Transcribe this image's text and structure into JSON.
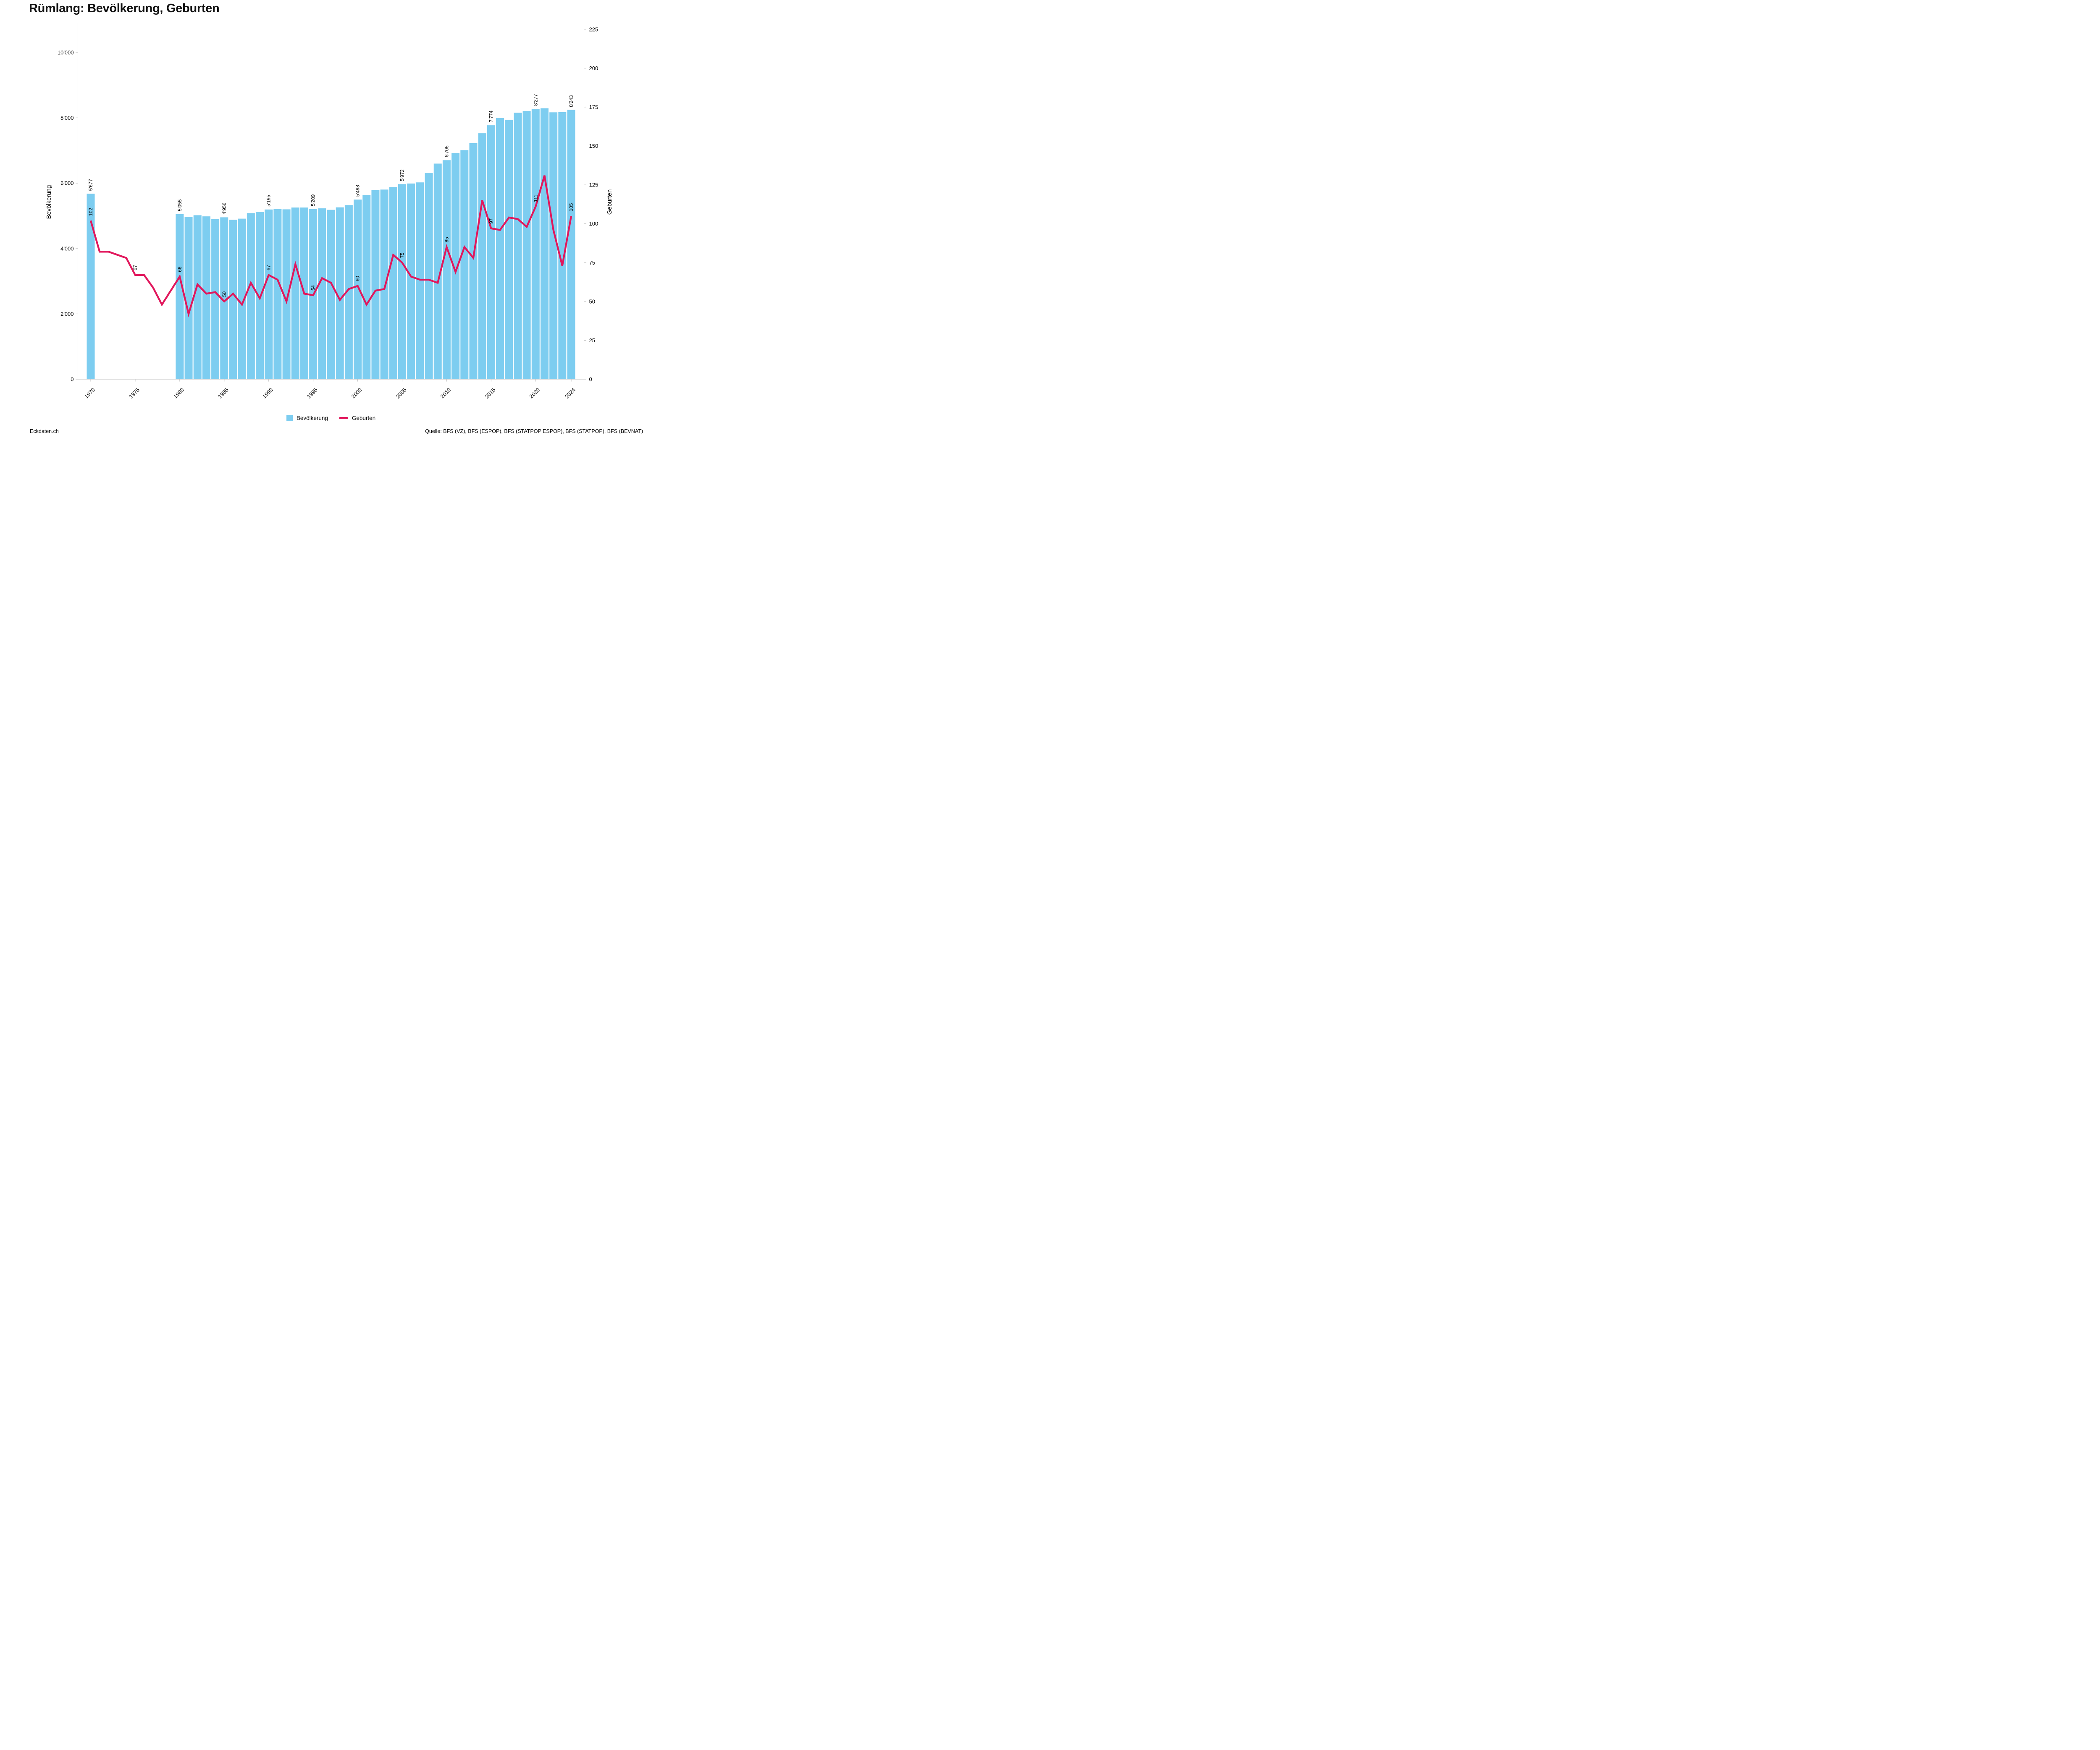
{
  "title": "Rümlang: Bevölkerung, Geburten",
  "legend": {
    "population_label": "Bevölkerung",
    "births_label": "Geburten"
  },
  "footer": {
    "left": "Eckdaten.ch",
    "right": "Quelle: BFS (VZ), BFS (ESPOP), BFS (STATPOP ESPOP), BFS (STATPOP), BFS (BEVNAT)"
  },
  "colors": {
    "bar": "#7DCDF0",
    "line": "#E1175C",
    "axis": "#BDBDBD",
    "text": "#000000"
  },
  "axes": {
    "left": {
      "title": "Bevölkerung",
      "tick_values": [
        0,
        2000,
        4000,
        6000,
        8000,
        10000
      ],
      "tick_labels": [
        "0",
        "2'000",
        "4'000",
        "6'000",
        "8'000",
        "10'000"
      ]
    },
    "right": {
      "title": "Geburten",
      "tick_values": [
        0,
        25,
        50,
        75,
        100,
        125,
        150,
        175,
        200,
        225
      ],
      "tick_labels": [
        "0",
        "25",
        "50",
        "75",
        "100",
        "125",
        "150",
        "175",
        "200",
        "225"
      ]
    },
    "x": {
      "tick_values": [
        1970,
        1975,
        1980,
        1985,
        1990,
        1995,
        2000,
        2005,
        2010,
        2015,
        2020,
        2024
      ],
      "tick_labels": [
        "1970",
        "1975",
        "1980",
        "1985",
        "1990",
        "1995",
        "2000",
        "2005",
        "2010",
        "2015",
        "2020",
        "2024"
      ]
    }
  },
  "chart_data": {
    "type": "bar",
    "subtype": "bar+line combo, dual axis",
    "title": "Rümlang: Bevölkerung, Geburten",
    "x": [
      1970,
      1971,
      1972,
      1973,
      1974,
      1975,
      1976,
      1977,
      1978,
      1979,
      1980,
      1981,
      1982,
      1983,
      1984,
      1985,
      1986,
      1987,
      1988,
      1989,
      1990,
      1991,
      1992,
      1993,
      1994,
      1995,
      1996,
      1997,
      1998,
      1999,
      2000,
      2001,
      2002,
      2003,
      2004,
      2005,
      2006,
      2007,
      2008,
      2009,
      2010,
      2011,
      2012,
      2013,
      2014,
      2015,
      2016,
      2017,
      2018,
      2019,
      2020,
      2021,
      2022,
      2023,
      2024
    ],
    "series": [
      {
        "name": "Bevölkerung",
        "type": "bar",
        "axis": "left",
        "values": [
          5677,
          null,
          null,
          null,
          null,
          null,
          null,
          null,
          null,
          null,
          5055,
          4970,
          5020,
          4985,
          4905,
          4956,
          4880,
          4915,
          5085,
          5115,
          5195,
          5210,
          5200,
          5255,
          5255,
          5209,
          5230,
          5185,
          5260,
          5330,
          5498,
          5630,
          5790,
          5805,
          5880,
          5972,
          5990,
          6025,
          6310,
          6600,
          6705,
          6925,
          7010,
          7225,
          7530,
          7774,
          7995,
          7940,
          8155,
          8210,
          8277,
          8290,
          8170,
          8175,
          8243
        ]
      },
      {
        "name": "Geburten",
        "type": "line",
        "axis": "right",
        "values": [
          102,
          82,
          82,
          80,
          78,
          67,
          67,
          59,
          48,
          57,
          66,
          42,
          61,
          55,
          56,
          50,
          55,
          48,
          62,
          52,
          67,
          64,
          50,
          74,
          55,
          54,
          65,
          62,
          51,
          58,
          60,
          48,
          57,
          58,
          80,
          75,
          66,
          64,
          64,
          62,
          85,
          69,
          85,
          78,
          115,
          97,
          96,
          104,
          103,
          98,
          111,
          131,
          96,
          73,
          105
        ]
      }
    ],
    "ylabel_left": "Bevölkerung",
    "ylabel_right": "Geburten",
    "ylim_left": [
      0,
      10900
    ],
    "ylim_right": [
      0,
      229
    ],
    "grid": false,
    "legend_position": "bottom center",
    "bar_value_labels": [
      {
        "year": 1970,
        "text": "5'677"
      },
      {
        "year": 1980,
        "text": "5'055"
      },
      {
        "year": 1985,
        "text": "4'956"
      },
      {
        "year": 1990,
        "text": "5'195"
      },
      {
        "year": 1995,
        "text": "5'209"
      },
      {
        "year": 2000,
        "text": "5'498"
      },
      {
        "year": 2005,
        "text": "5'972"
      },
      {
        "year": 2010,
        "text": "6'705"
      },
      {
        "year": 2015,
        "text": "7'774"
      },
      {
        "year": 2020,
        "text": "8'277"
      },
      {
        "year": 2024,
        "text": "8'243"
      }
    ],
    "line_value_labels": [
      {
        "year": 1970,
        "text": "102"
      },
      {
        "year": 1975,
        "text": "67"
      },
      {
        "year": 1980,
        "text": "66"
      },
      {
        "year": 1985,
        "text": "50"
      },
      {
        "year": 1990,
        "text": "67"
      },
      {
        "year": 1995,
        "text": "54"
      },
      {
        "year": 2000,
        "text": "60"
      },
      {
        "year": 2005,
        "text": "75"
      },
      {
        "year": 2010,
        "text": "85"
      },
      {
        "year": 2015,
        "text": "97"
      },
      {
        "year": 2020,
        "text": "111"
      },
      {
        "year": 2024,
        "text": "105"
      }
    ]
  }
}
